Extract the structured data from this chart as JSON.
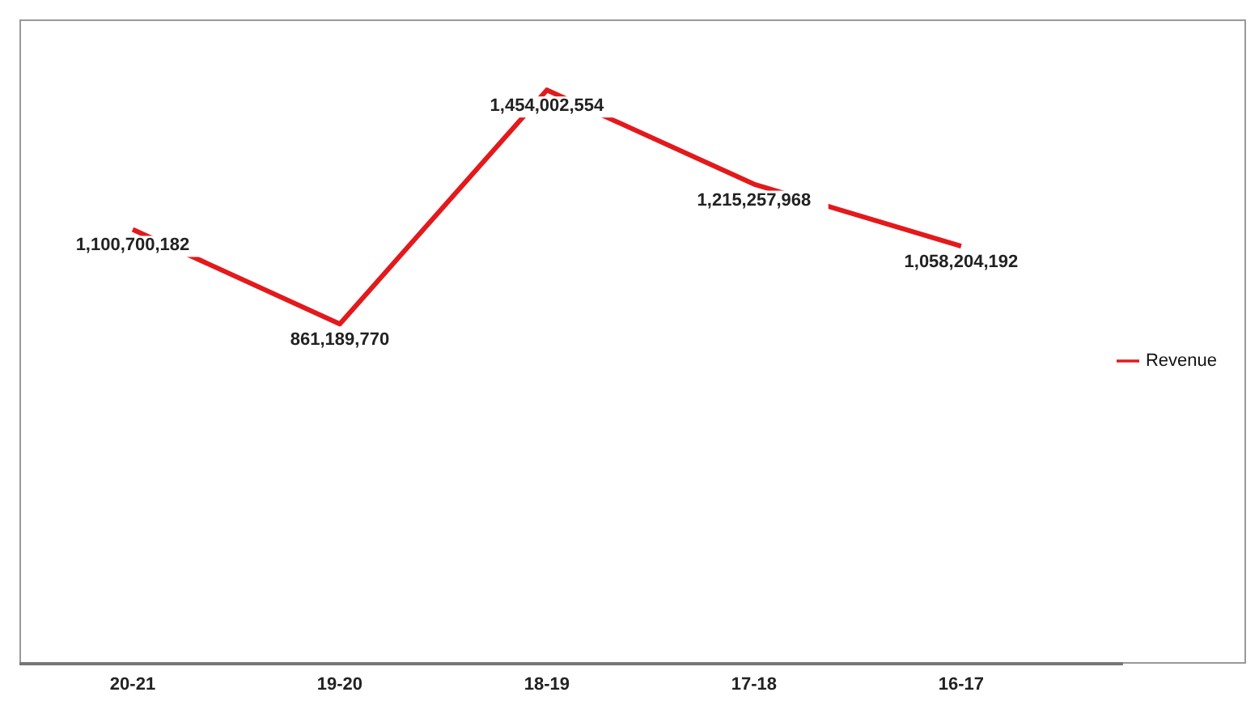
{
  "chart_data": {
    "type": "line",
    "categories": [
      "20-21",
      "19-20",
      "18-19",
      "17-18",
      "16-17"
    ],
    "series": [
      {
        "name": "Revenue",
        "color": "#e3191c",
        "values": [
          1100700182,
          861189770,
          1454002554,
          1215257968,
          1058204192
        ],
        "value_labels": [
          "1,100,700,182",
          "861,189,770",
          "1,454,002,554",
          "1,215,257,968",
          "1,058,204,192"
        ]
      }
    ],
    "tick_labels": "x",
    "legend": "right",
    "marker": "none",
    "grid": false
  }
}
